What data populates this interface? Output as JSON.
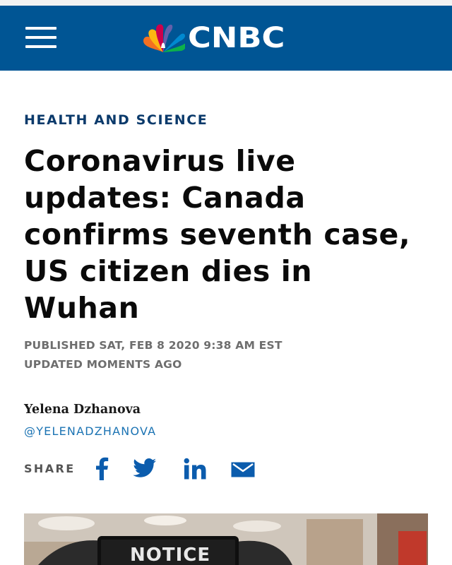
{
  "header": {
    "brand": "CNBC",
    "menu_icon": "hamburger-menu-icon",
    "logo_icon": "nbc-peacock-icon",
    "bar_color": "#005594"
  },
  "article": {
    "section": "HEALTH AND SCIENCE",
    "headline": "Coronavirus live updates: Canada confirms seventh case, US citizen dies in Wuhan",
    "published": "PUBLISHED SAT, FEB 8 2020 9:38 AM EST",
    "updated": "UPDATED MOMENTS AGO",
    "author": "Yelena Dzhanova",
    "author_handle": "@YELENADZHANOVA"
  },
  "share": {
    "label": "SHARE",
    "icons": [
      "facebook-icon",
      "twitter-icon",
      "linkedin-icon",
      "email-icon"
    ],
    "color": "#0b5cad"
  },
  "hero_image": {
    "sign_text": "NOTICE"
  }
}
